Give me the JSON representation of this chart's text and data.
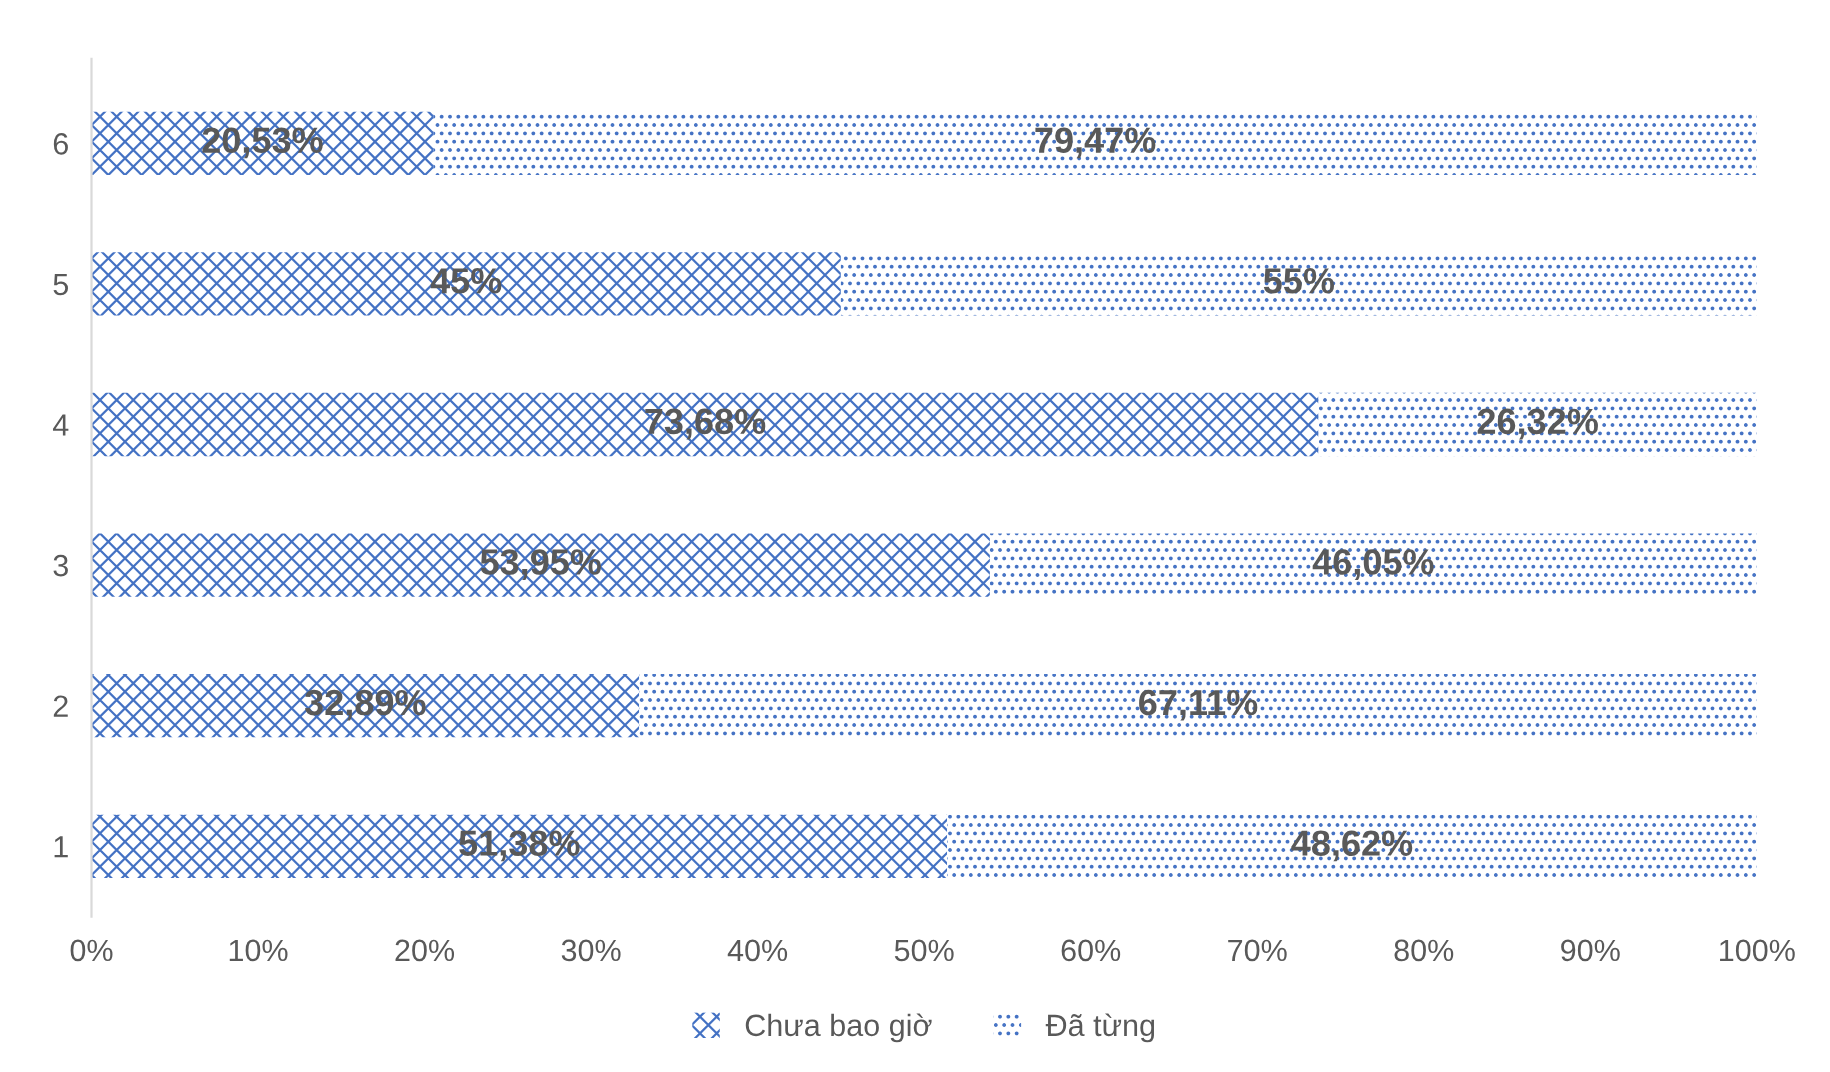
{
  "chart_data": {
    "type": "bar",
    "orientation": "horizontal",
    "stacked": true,
    "categories": [
      "6",
      "5",
      "4",
      "3",
      "2",
      "1"
    ],
    "series": [
      {
        "name": "Chưa bao giờ",
        "color": "#4472c4",
        "values": [
          20.53,
          45,
          73.68,
          53.95,
          32.89,
          51.38
        ],
        "value_labels": [
          "20,53%",
          "45%",
          "73,68%",
          "53,95%",
          "32,89%",
          "51,38%"
        ]
      },
      {
        "name": "Đã từng",
        "color": "#4472c4",
        "values": [
          79.47,
          55,
          26.32,
          46.05,
          67.11,
          48.62
        ],
        "value_labels": [
          "79,47%",
          "55%",
          "26,32%",
          "46,05%",
          "67,11%",
          "48,62%"
        ]
      }
    ],
    "xlim": [
      0,
      100
    ],
    "xticks": [
      {
        "value": 0,
        "label": "0%"
      },
      {
        "value": 10,
        "label": "10%"
      },
      {
        "value": 20,
        "label": "20%"
      },
      {
        "value": 30,
        "label": "30%"
      },
      {
        "value": 40,
        "label": "40%"
      },
      {
        "value": 50,
        "label": "50%"
      },
      {
        "value": 60,
        "label": "60%"
      },
      {
        "value": 70,
        "label": "70%"
      },
      {
        "value": 80,
        "label": "80%"
      },
      {
        "value": 90,
        "label": "90%"
      },
      {
        "value": 100,
        "label": "100%"
      }
    ],
    "legend": "bottom",
    "grid": false
  }
}
